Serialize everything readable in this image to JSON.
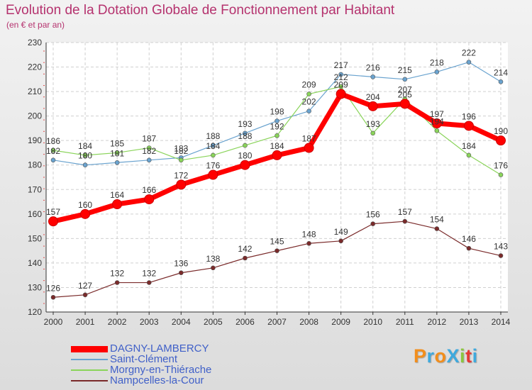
{
  "title": "Evolution de la Dotation Globale de Fonctionnement par Habitant",
  "subtitle": "(en € et par an)",
  "brand": "ProXiti",
  "brand_letters": [
    {
      "ch": "P",
      "color": "#f28e1c"
    },
    {
      "ch": "r",
      "color": "#3fa9dd"
    },
    {
      "ch": "o",
      "color": "#f28e1c"
    },
    {
      "ch": "X",
      "color": "#3fa9dd"
    },
    {
      "ch": "i",
      "color": "#8cc63f"
    },
    {
      "ch": "t",
      "color": "#e53935"
    },
    {
      "ch": "i",
      "color": "#3fa9dd"
    }
  ],
  "chart_data": {
    "type": "line",
    "title": "Evolution de la Dotation Globale de Fonctionnement par Habitant",
    "subtitle": "(en € et par an)",
    "xlabel": "",
    "ylabel": "",
    "x": [
      "2000",
      "2001",
      "2002",
      "2003",
      "2004",
      "2005",
      "2006",
      "2007",
      "2008",
      "2009",
      "2010",
      "2011",
      "2012",
      "2013",
      "2014"
    ],
    "ylim": [
      120,
      230
    ],
    "yticks": [
      120,
      130,
      140,
      150,
      160,
      170,
      180,
      190,
      200,
      210,
      220,
      230
    ],
    "grid": true,
    "legend": "bottom-left",
    "series": [
      {
        "name": "DAGNY-LAMBERCY",
        "color": "#ff0000",
        "emphasis": true,
        "values": [
          157,
          160,
          164,
          166,
          172,
          176,
          180,
          184,
          187,
          209,
          204,
          205,
          197,
          196,
          190
        ],
        "labels": [
          "157",
          "160",
          "164",
          "166",
          "172",
          "176",
          "180",
          "184",
          "187",
          "209",
          "204",
          "205",
          "197",
          "196",
          "190"
        ]
      },
      {
        "name": "Saint-Clément",
        "color": "#6aa3cf",
        "values": [
          182,
          180,
          181,
          182,
          183,
          188,
          193,
          198,
          202,
          217,
          216,
          215,
          218,
          222,
          214
        ],
        "labels": [
          "182",
          "180",
          "181",
          "182",
          "183",
          "188",
          "193",
          "198",
          "202",
          "217",
          "216",
          "215",
          "218",
          "222",
          "214"
        ]
      },
      {
        "name": "Morgny-en-Thiérache",
        "color": "#8ad45a",
        "values": [
          186,
          184,
          185,
          187,
          182,
          184,
          188,
          192,
          209,
          212,
          193,
          207,
          194,
          184,
          176
        ],
        "labels": [
          "186",
          "184",
          "185",
          "187",
          "182",
          "184",
          "188",
          "192",
          "209",
          "212",
          "193",
          "207",
          "194",
          "184",
          "176"
        ]
      },
      {
        "name": "Nampcelles-la-Cour",
        "color": "#7a2a2a",
        "values": [
          126,
          127,
          132,
          132,
          136,
          138,
          142,
          145,
          148,
          149,
          156,
          157,
          154,
          146,
          143
        ],
        "labels": [
          "126",
          "127",
          "132",
          "132",
          "136",
          "138",
          "142",
          "145",
          "148",
          "149",
          "156",
          "157",
          "154",
          "146",
          "143"
        ]
      }
    ]
  }
}
